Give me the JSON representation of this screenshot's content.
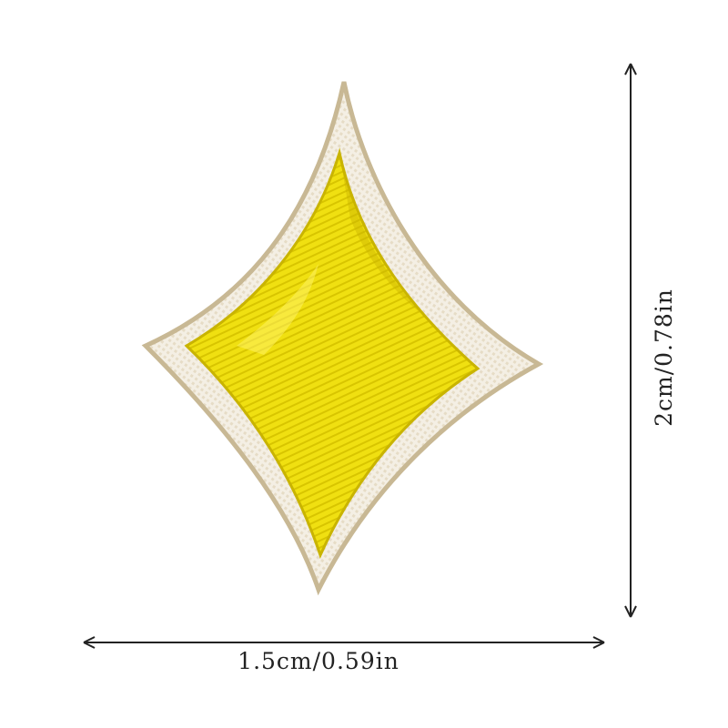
{
  "product": {
    "colors": {
      "fill": "#f0e011",
      "fill_shadow": "#c9b400",
      "border": "#f4efe4",
      "border_edge": "#d9ceb4",
      "outline": "#b7a98a"
    }
  },
  "dimensions": {
    "width_label": "1.5cm/0.59in",
    "height_label": "2cm/0.78in"
  }
}
